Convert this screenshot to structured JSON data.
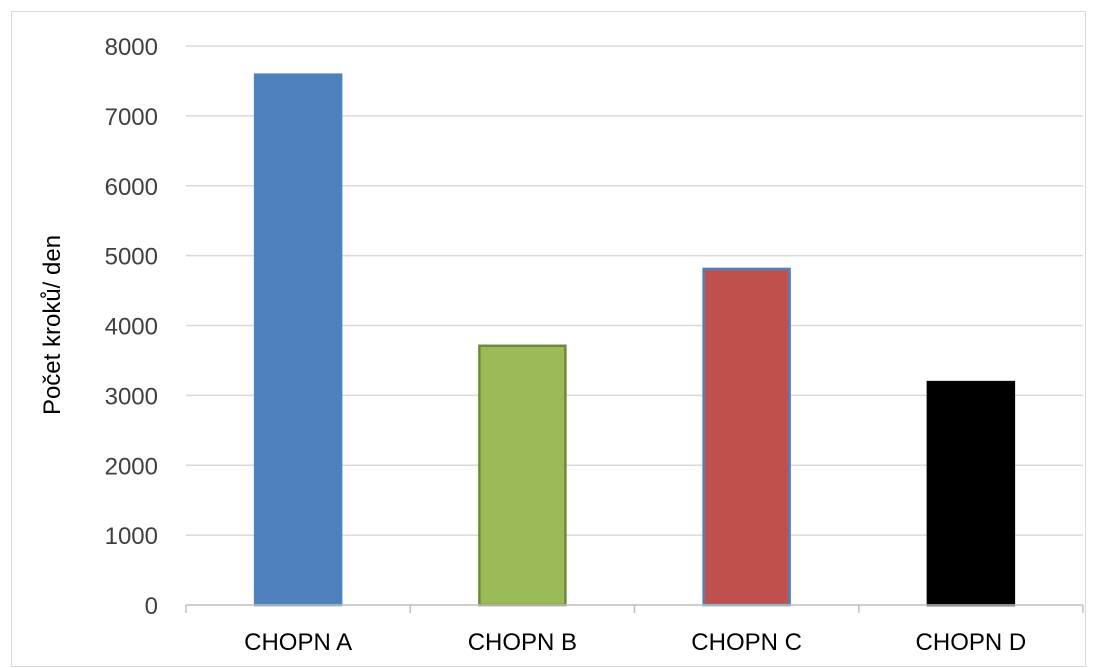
{
  "chart_data": {
    "type": "bar",
    "categories": [
      "CHOPN A",
      "CHOPN B",
      "CHOPN C",
      "CHOPN D"
    ],
    "values": [
      7590,
      3710,
      4810,
      3190
    ],
    "bar_colors": [
      "#4f81bd",
      "#9bbb59",
      "#c0504d",
      "#000000"
    ],
    "bar_border_colors": [
      "#4f81bd",
      "#71893f",
      "#4f81bd",
      "#000000"
    ],
    "title": "",
    "xlabel": "",
    "ylabel": "Počet kroků/ den",
    "ylim": [
      0,
      8000
    ],
    "yticks": [
      0,
      1000,
      2000,
      3000,
      4000,
      5000,
      6000,
      7000,
      8000
    ],
    "grid": true,
    "legend": "none",
    "colors": {
      "grid": "#d9d9d9",
      "axis": "#bfbfbf"
    }
  }
}
